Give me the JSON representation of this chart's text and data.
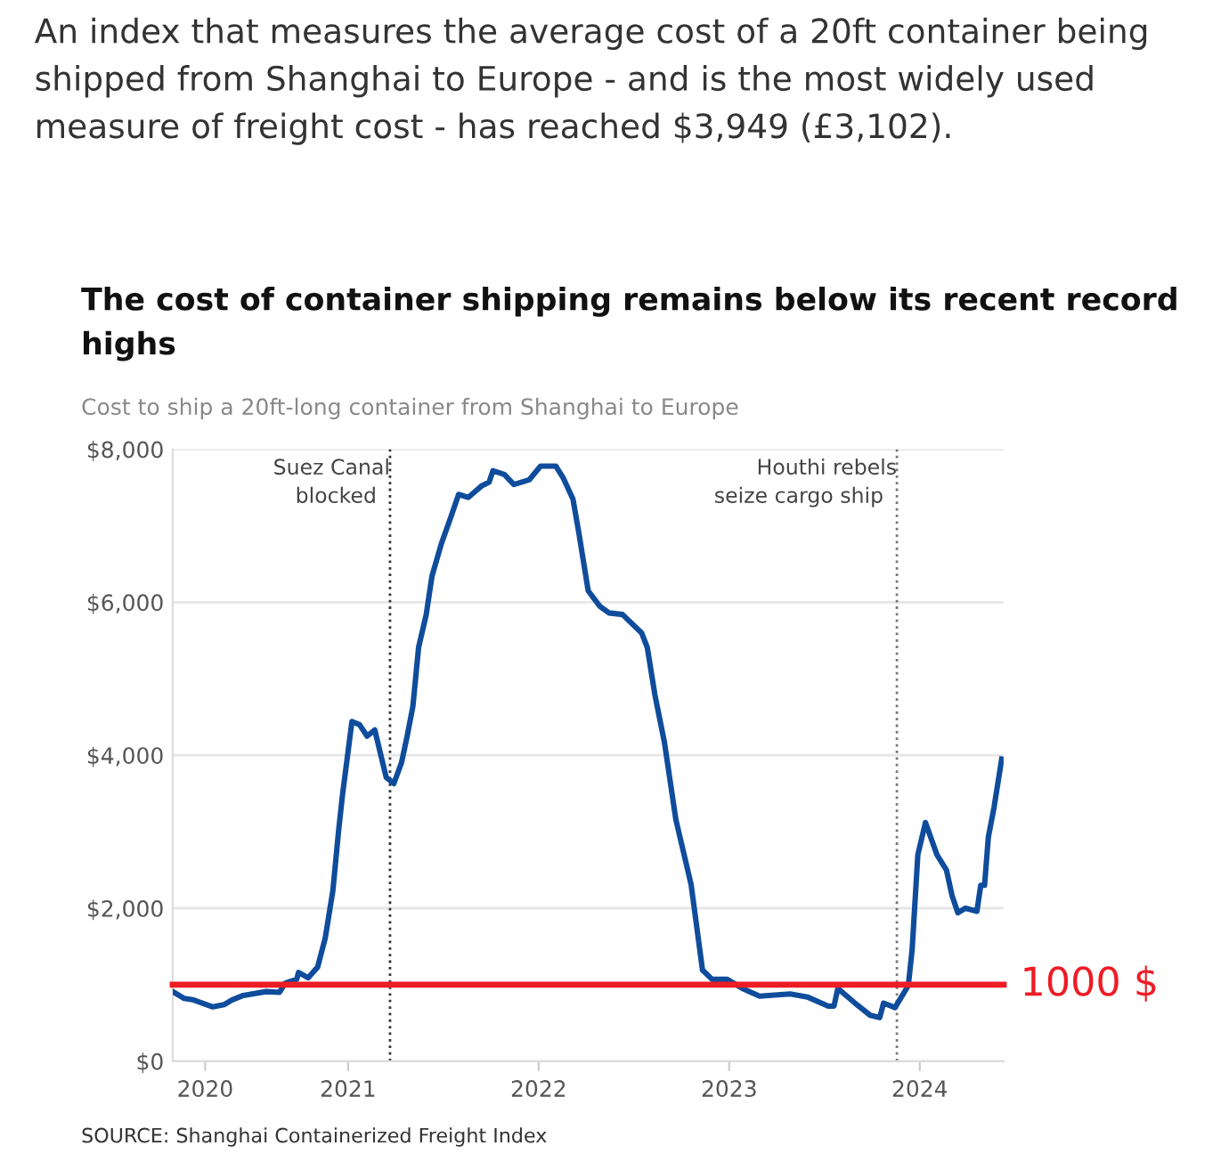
{
  "chart_data": {
    "type": "line",
    "title": "The cost of container shipping remains below its recent record highs",
    "subtitle": "Cost to ship a 20ft-long container from Shanghai to Europe",
    "annotations": [
      "An index that measures the average cost of a 20ft container being shipped from Shanghai to Europe - and is the most widely used measure of freight cost - has reached $3,949 (£3,102).",
      "SOURCE: Shanghai Containerized Freight Index"
    ],
    "series": [
      {
        "color": "#0f4c9c",
        "x": [
          2020.08,
          2020.14,
          2020.19,
          2020.29,
          2020.35,
          2020.39,
          2020.45,
          2020.57,
          2020.64,
          2020.67,
          2020.73,
          2020.74,
          2020.79,
          2020.84,
          2020.88,
          2020.92,
          2020.95,
          2020.97,
          2021.02,
          2021.06,
          2021.1,
          2021.14,
          2021.17,
          2021.2,
          2021.24,
          2021.28,
          2021.31,
          2021.34,
          2021.37,
          2021.41,
          2021.44,
          2021.49,
          2021.54,
          2021.58,
          2021.63,
          2021.7,
          2021.74,
          2021.76,
          2021.82,
          2021.87,
          2021.95,
          2022.01,
          2022.09,
          2022.13,
          2022.18,
          2022.21,
          2022.26,
          2022.32,
          2022.37,
          2022.44,
          2022.54,
          2022.57,
          2022.61,
          2022.66,
          2022.72,
          2022.8,
          2022.86,
          2022.91,
          2022.99,
          2023.07,
          2023.16,
          2023.32,
          2023.41,
          2023.52,
          2023.55,
          2023.57,
          2023.66,
          2023.74,
          2023.79,
          2023.81,
          2023.87,
          2023.94,
          2023.96,
          2023.99,
          2024.03,
          2024.09,
          2024.14,
          2024.17,
          2024.2,
          2024.24,
          2024.3,
          2024.32,
          2024.34,
          2024.36,
          2024.39,
          2024.43
        ],
        "values": [
          910,
          820,
          800,
          710,
          740,
          800,
          860,
          910,
          900,
          1020,
          1070,
          1160,
          1090,
          1230,
          1610,
          2230,
          3010,
          3470,
          4440,
          4400,
          4250,
          4330,
          4020,
          3710,
          3630,
          3900,
          4250,
          4640,
          5410,
          5840,
          6340,
          6770,
          7120,
          7410,
          7370,
          7520,
          7570,
          7720,
          7670,
          7540,
          7600,
          7780,
          7780,
          7620,
          7350,
          6920,
          6150,
          5950,
          5860,
          5840,
          5600,
          5410,
          4790,
          4170,
          3160,
          2310,
          1190,
          1070,
          1070,
          950,
          850,
          880,
          840,
          720,
          720,
          950,
          760,
          600,
          570,
          760,
          700,
          990,
          1460,
          2700,
          3120,
          2700,
          2500,
          2160,
          1940,
          2000,
          1960,
          2300,
          2300,
          2930,
          3320,
          3949
        ]
      }
    ],
    "xlim": [
      2020.08,
      2024.44
    ],
    "xticks": [
      {
        "value": 2020.25,
        "label": "2020"
      },
      2021,
      2022,
      2023,
      2024
    ],
    "ylim": [
      0,
      8000
    ],
    "yticks": [
      {
        "value": 0,
        "label": "$0"
      },
      {
        "value": 2000,
        "label": "$2,000"
      },
      {
        "value": 4000,
        "label": "$4,000"
      },
      {
        "value": 6000,
        "label": "$6,000"
      },
      {
        "value": 8000,
        "label": "$8,000"
      }
    ],
    "grid": "y",
    "ref_lines": [
      {
        "axis": "x",
        "value": 2021.22,
        "label": "Suez Canal\nblocked",
        "color": "#333333",
        "line_style": "dotted"
      },
      {
        "axis": "x",
        "value": 2023.88,
        "label": "Houthi rebels\nseize cargo ship",
        "color": "#777777",
        "line_style": "dotted"
      },
      {
        "axis": "y",
        "value": 1000,
        "label": "1000 $",
        "color": "#ee1c25",
        "line_style": "solid"
      }
    ]
  }
}
